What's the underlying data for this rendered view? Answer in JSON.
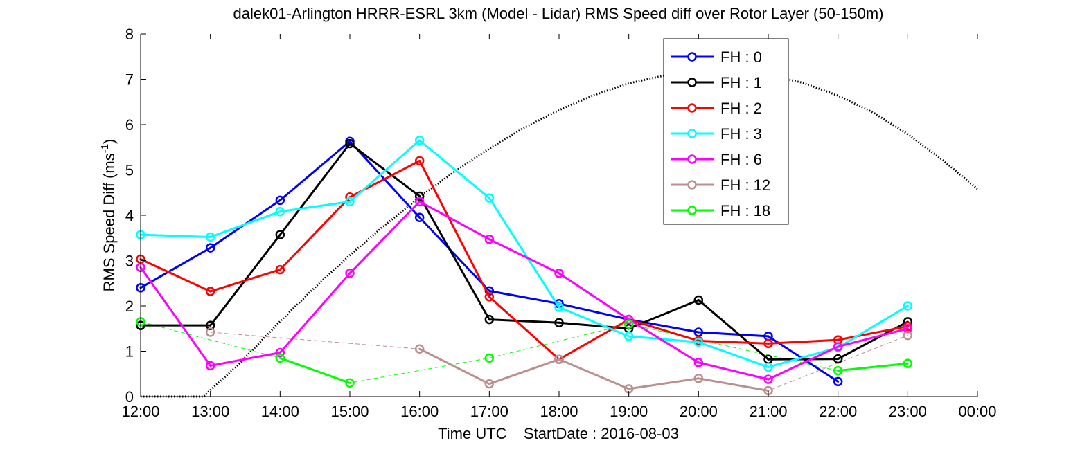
{
  "chart_data": {
    "type": "line",
    "title": "dalek01-Arlington HRRR-ESRL 3km (Model - Lidar) RMS Speed diff over Rotor Layer (50-150m)",
    "xlabel": "Time UTC    StartDate : 2016-08-03",
    "ylabel_main": "RMS Speed Diff (ms",
    "ylabel_sup": "-1",
    "ylabel_close": ")",
    "xlim": [
      12,
      24
    ],
    "ylim": [
      0,
      8
    ],
    "x_ticks": [
      12,
      13,
      14,
      15,
      16,
      17,
      18,
      19,
      20,
      21,
      22,
      23,
      24
    ],
    "x_tick_labels": [
      "12:00",
      "13:00",
      "14:00",
      "15:00",
      "16:00",
      "17:00",
      "18:00",
      "19:00",
      "20:00",
      "21:00",
      "22:00",
      "23:00",
      "00:00"
    ],
    "y_ticks": [
      0,
      1,
      2,
      3,
      4,
      5,
      6,
      7,
      8
    ],
    "y_tick_labels": [
      "0",
      "1",
      "2",
      "3",
      "4",
      "5",
      "6",
      "7",
      "8"
    ],
    "grid": false,
    "legend_position": "top-right",
    "series": [
      {
        "name": "FH : 0",
        "color": "#0000ff",
        "points": [
          [
            12,
            2.4
          ],
          [
            13,
            3.28
          ],
          [
            14,
            4.33
          ],
          [
            15,
            5.63
          ],
          [
            16,
            3.95
          ],
          [
            17,
            2.33
          ],
          [
            18,
            2.05
          ],
          [
            19,
            1.7
          ],
          [
            20,
            1.42
          ],
          [
            21,
            1.33
          ],
          [
            22,
            0.33
          ]
        ]
      },
      {
        "name": "FH : 1",
        "color": "#000000",
        "points": [
          [
            12,
            1.57
          ],
          [
            13,
            1.57
          ],
          [
            14,
            3.57
          ],
          [
            15,
            5.58
          ],
          [
            16,
            4.42
          ],
          [
            17,
            1.7
          ],
          [
            18,
            1.63
          ],
          [
            19,
            1.5
          ],
          [
            20,
            2.13
          ],
          [
            21,
            0.82
          ],
          [
            22,
            0.83
          ],
          [
            23,
            1.65
          ]
        ]
      },
      {
        "name": "FH : 2",
        "color": "#ff0000",
        "points": [
          [
            12,
            3.03
          ],
          [
            13,
            2.32
          ],
          [
            14,
            2.8
          ],
          [
            15,
            4.4
          ],
          [
            16,
            5.2
          ],
          [
            17,
            2.2
          ],
          [
            18,
            0.82
          ],
          [
            19,
            1.7
          ],
          [
            20,
            1.23
          ],
          [
            21,
            1.17
          ],
          [
            22,
            1.25
          ],
          [
            23,
            1.55
          ]
        ]
      },
      {
        "name": "FH : 3",
        "color": "#00ffff",
        "points": [
          [
            12,
            3.57
          ],
          [
            13,
            3.52
          ],
          [
            14,
            4.08
          ],
          [
            15,
            4.3
          ],
          [
            16,
            5.65
          ],
          [
            17,
            4.38
          ],
          [
            18,
            1.97
          ],
          [
            19,
            1.33
          ],
          [
            20,
            1.2
          ],
          [
            21,
            0.65
          ],
          [
            22,
            1.08
          ],
          [
            23,
            2.0
          ]
        ]
      },
      {
        "name": "FH : 6",
        "color": "#ff00ff",
        "points": [
          [
            12,
            2.85
          ],
          [
            13,
            0.68
          ],
          [
            14,
            0.97
          ],
          [
            15,
            2.72
          ],
          [
            16,
            4.3
          ],
          [
            17,
            3.47
          ],
          [
            18,
            2.72
          ],
          [
            19,
            1.7
          ],
          [
            20,
            0.75
          ],
          [
            21,
            0.38
          ],
          [
            22,
            1.1
          ],
          [
            23,
            1.5
          ]
        ]
      },
      {
        "name": "FH : 12",
        "color": "#bc8f8f",
        "points": [
          [
            13,
            1.42
          ],
          [
            16,
            1.05
          ],
          [
            17,
            0.28
          ],
          [
            18,
            0.82
          ],
          [
            19,
            0.17
          ],
          [
            20,
            0.4
          ],
          [
            21,
            0.13
          ],
          [
            23,
            1.35
          ]
        ]
      },
      {
        "name": "FH : 18",
        "color": "#00ff00",
        "points": [
          [
            12,
            1.65
          ],
          [
            14,
            0.85
          ],
          [
            15,
            0.3
          ],
          [
            17,
            0.85
          ],
          [
            19,
            1.6
          ],
          [
            22,
            0.57
          ],
          [
            23,
            0.73
          ]
        ]
      }
    ],
    "reference_curve": {
      "style": "dotted",
      "color": "#000000",
      "points": [
        [
          12,
          0
        ],
        [
          12.45,
          0
        ],
        [
          12.9,
          0
        ],
        [
          13.4,
          0.7
        ],
        [
          14,
          1.66
        ],
        [
          14.5,
          2.41
        ],
        [
          15,
          3.12
        ],
        [
          15.5,
          3.78
        ],
        [
          16,
          4.4
        ],
        [
          16.5,
          4.96
        ],
        [
          17,
          5.47
        ],
        [
          17.5,
          5.93
        ],
        [
          18,
          6.32
        ],
        [
          18.5,
          6.65
        ],
        [
          19,
          6.91
        ],
        [
          19.5,
          7.08
        ],
        [
          20,
          7.18
        ],
        [
          20.5,
          7.18
        ],
        [
          21,
          7.1
        ],
        [
          21.5,
          6.92
        ],
        [
          22,
          6.64
        ],
        [
          22.5,
          6.27
        ],
        [
          23,
          5.79
        ],
        [
          23.5,
          5.22
        ],
        [
          24,
          4.58
        ]
      ]
    }
  }
}
